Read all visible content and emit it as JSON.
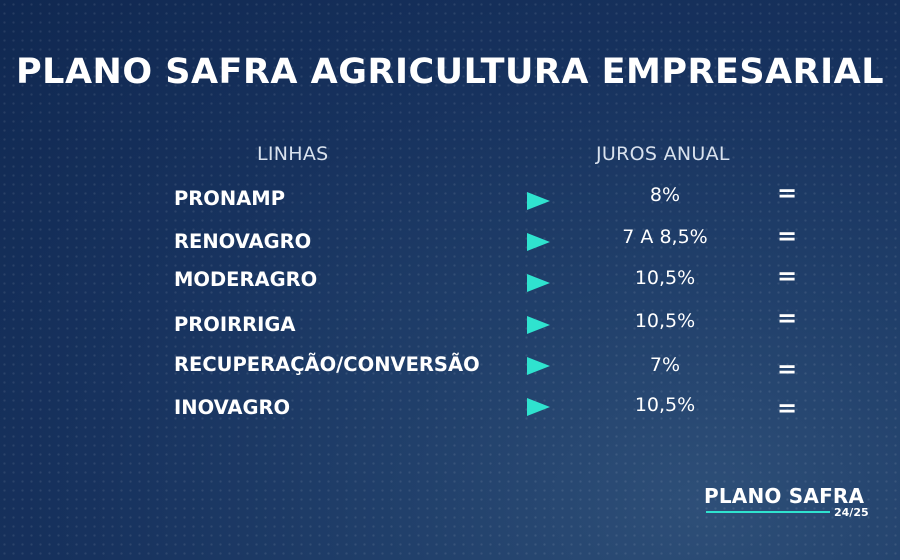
{
  "title": "PLANO SAFRA AGRICULTURA EMPRESARIAL",
  "headers": {
    "linhas": "LINHAS",
    "juros": "JUROS ANUAL"
  },
  "rows": [
    {
      "name": "PRONAMP",
      "rate": "8%",
      "status": "="
    },
    {
      "name": "RENOVAGRO",
      "rate": "7 A 8,5%",
      "status": "="
    },
    {
      "name": "MODERAGRO",
      "rate": "10,5%",
      "status": "="
    },
    {
      "name": "PROIRRIGA",
      "rate": "10,5%",
      "status": "="
    },
    {
      "name": "RECUPERAÇÃO/CONVERSÃO",
      "rate": "7%",
      "status": "="
    },
    {
      "name": "INOVAGRO",
      "rate": "10,5%",
      "status": "="
    }
  ],
  "logo": {
    "main": "PLANO SAFRA",
    "sub": "24/25"
  },
  "colors": {
    "background": "#17325e",
    "accent": "#2fe3cf",
    "text": "#ffffff"
  }
}
